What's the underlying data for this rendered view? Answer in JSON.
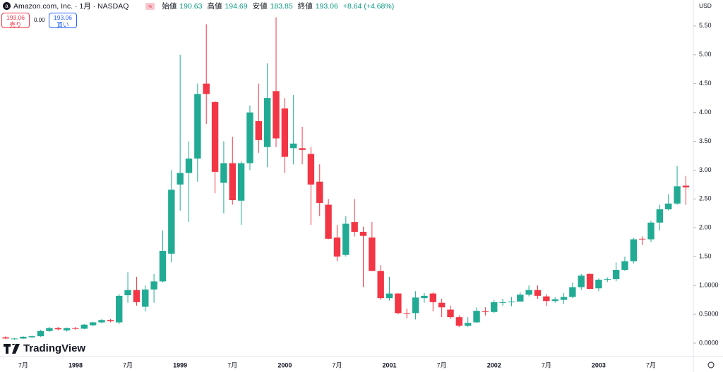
{
  "header": {
    "symbol": "Amazon.com, Inc. · 1月 · NASDAQ",
    "open_label": "始値",
    "open": "190.63",
    "high_label": "高値",
    "high": "194.69",
    "low_label": "安値",
    "low": "183.85",
    "close_label": "終値",
    "close": "193.06",
    "change": "+8.64 (+4.68%)",
    "sell_price": "193.06",
    "sell_label": "売り",
    "spread": "0.00",
    "buy_price": "193.06",
    "buy_label": "買い",
    "currency": "USD",
    "brand": "TradingView"
  },
  "chart_data": {
    "type": "candlestick",
    "categories": [
      null,
      null,
      "7月",
      null,
      null,
      null,
      null,
      null,
      "1998",
      null,
      null,
      null,
      null,
      null,
      "7月",
      null,
      null,
      null,
      null,
      null,
      "1999",
      null,
      null,
      null,
      null,
      null,
      "7月",
      null,
      null,
      null,
      null,
      null,
      "2000",
      null,
      null,
      null,
      null,
      null,
      "7月",
      null,
      null,
      null,
      null,
      null,
      "2001",
      null,
      null,
      null,
      null,
      null,
      "7月",
      null,
      null,
      null,
      null,
      null,
      "2002",
      null,
      null,
      null,
      null,
      null,
      "7月",
      null,
      null,
      null,
      null,
      null,
      "2003",
      null,
      null,
      null,
      null,
      null,
      "7月",
      null,
      null,
      null,
      null
    ],
    "open": [
      0.1,
      0.07,
      0.08,
      0.1,
      0.12,
      0.21,
      0.26,
      0.22,
      0.26,
      0.25,
      0.31,
      0.36,
      0.4,
      0.36,
      0.83,
      0.92,
      0.63,
      0.93,
      1.07,
      1.55,
      2.75,
      2.95,
      3.2,
      4.5,
      4.18,
      2.78,
      3.12,
      2.47,
      3.12,
      3.85,
      3.4,
      4.37,
      4.07,
      3.38,
      3.38,
      3.28,
      2.8,
      2.4,
      1.83,
      1.53,
      2.1,
      1.93,
      1.83,
      1.25,
      0.78,
      0.86,
      0.52,
      0.52,
      0.78,
      0.86,
      0.7,
      0.58,
      0.45,
      0.3,
      0.36,
      0.55,
      0.54,
      0.7,
      0.71,
      0.72,
      0.84,
      0.92,
      0.81,
      0.73,
      0.75,
      0.8,
      0.97,
      1.2,
      0.95,
      1.1,
      1.11,
      1.27,
      1.42,
      1.81,
      1.8,
      2.09,
      2.32,
      2.42,
      2.73
    ],
    "high": [
      0.12,
      0.09,
      0.12,
      0.13,
      0.23,
      0.28,
      0.28,
      0.27,
      0.28,
      0.33,
      0.37,
      0.42,
      0.42,
      0.85,
      1.23,
      1.15,
      1.0,
      1.2,
      1.95,
      3.0,
      5.0,
      3.5,
      4.5,
      5.53,
      4.2,
      3.5,
      3.58,
      3.15,
      4.12,
      4.5,
      4.85,
      5.65,
      4.25,
      4.3,
      3.75,
      3.4,
      3.1,
      2.5,
      2.05,
      2.2,
      2.5,
      2.02,
      2.1,
      1.35,
      1.15,
      0.87,
      0.6,
      0.9,
      0.87,
      0.88,
      0.77,
      0.65,
      0.48,
      0.45,
      0.62,
      0.62,
      0.75,
      0.77,
      0.8,
      0.88,
      1.0,
      1.0,
      0.85,
      0.8,
      0.87,
      1.05,
      1.2,
      1.21,
      1.12,
      1.14,
      1.4,
      1.5,
      1.82,
      1.85,
      2.12,
      2.4,
      2.58,
      3.07,
      2.9
    ],
    "low": [
      0.07,
      0.06,
      0.07,
      0.09,
      0.11,
      0.19,
      0.22,
      0.2,
      0.23,
      0.24,
      0.29,
      0.34,
      0.36,
      0.33,
      0.7,
      0.65,
      0.55,
      0.7,
      1.05,
      1.4,
      2.3,
      2.1,
      2.8,
      3.8,
      2.6,
      2.25,
      2.4,
      2.05,
      3.0,
      3.3,
      3.05,
      3.4,
      2.95,
      3.1,
      3.1,
      2.05,
      2.2,
      1.8,
      1.42,
      1.5,
      1.85,
      0.97,
      1.25,
      0.75,
      0.74,
      0.5,
      0.43,
      0.41,
      0.7,
      0.55,
      0.45,
      0.42,
      0.28,
      0.28,
      0.35,
      0.48,
      0.52,
      0.65,
      0.64,
      0.72,
      0.81,
      0.77,
      0.64,
      0.7,
      0.68,
      0.78,
      0.92,
      0.93,
      0.9,
      1.06,
      1.07,
      1.25,
      1.38,
      1.7,
      1.75,
      1.95,
      2.3,
      2.4,
      2.4
    ],
    "close": [
      0.08,
      0.08,
      0.11,
      0.12,
      0.21,
      0.26,
      0.24,
      0.26,
      0.25,
      0.32,
      0.36,
      0.4,
      0.38,
      0.82,
      0.92,
      0.71,
      0.93,
      1.07,
      1.6,
      2.66,
      2.95,
      3.2,
      4.32,
      4.32,
      2.97,
      3.12,
      2.48,
      3.12,
      4.0,
      3.52,
      4.25,
      3.55,
      3.23,
      3.46,
      3.35,
      2.75,
      2.43,
      1.81,
      1.5,
      2.07,
      1.93,
      1.86,
      1.25,
      0.78,
      0.86,
      0.52,
      0.51,
      0.79,
      0.82,
      0.71,
      0.62,
      0.45,
      0.3,
      0.35,
      0.56,
      0.54,
      0.71,
      0.71,
      0.72,
      0.84,
      0.92,
      0.82,
      0.73,
      0.76,
      0.8,
      0.97,
      1.17,
      0.94,
      1.1,
      1.11,
      1.27,
      1.42,
      1.8,
      1.8,
      2.09,
      2.32,
      2.42,
      2.72,
      2.7
    ],
    "up_color": "#22ab94",
    "down_color": "#f23645",
    "ylim": [
      -0.22,
      5.95
    ],
    "yticks": [
      {
        "value": 0,
        "label": "0.0000"
      },
      {
        "value": 0.5,
        "label": "0.5000"
      },
      {
        "value": 1,
        "label": "1.0000"
      },
      {
        "value": 1.5,
        "label": "1.50"
      },
      {
        "value": 2,
        "label": "2.00"
      },
      {
        "value": 2.5,
        "label": "2.50"
      },
      {
        "value": 3,
        "label": "3.00"
      },
      {
        "value": 3.5,
        "label": "3.50"
      },
      {
        "value": 4,
        "label": "4.00"
      },
      {
        "value": 4.5,
        "label": "4.50"
      },
      {
        "value": 5,
        "label": "5.00"
      },
      {
        "value": 5.5,
        "label": "5.50"
      }
    ],
    "grid": false
  }
}
